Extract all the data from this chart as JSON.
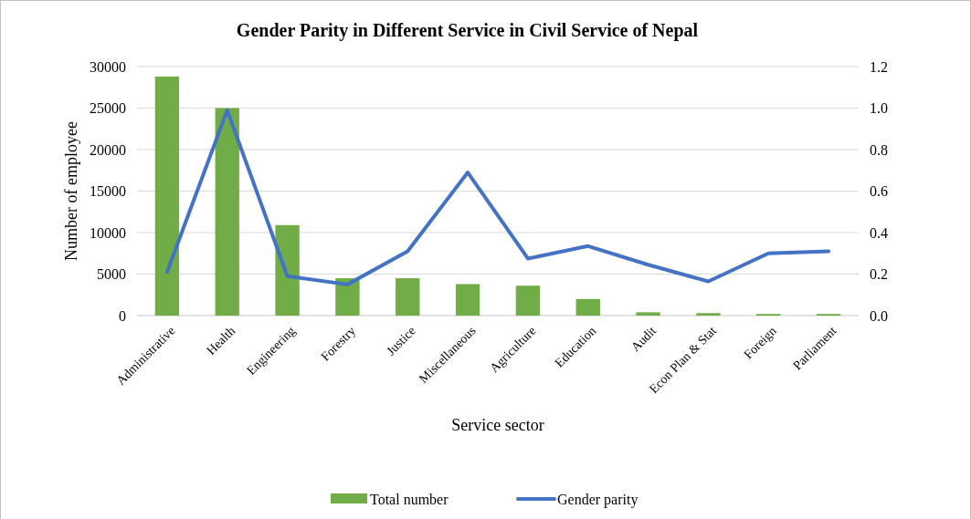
{
  "chart_data": {
    "type": "bar",
    "title": "Gender Parity in Different Service in Civil Service of Nepal",
    "xlabel": "Service sector",
    "ylabel": "Number of employee",
    "categories": [
      "Administrative",
      "Health",
      "Engineering",
      "Forestry",
      "Justice",
      "Miscellaneous",
      "Agriculture",
      "Education",
      "Audit",
      "Econ Plan & Stat",
      "Foreign",
      "Parliament"
    ],
    "series": [
      {
        "name": "Total number",
        "color": "#70ad47",
        "values": [
          28800,
          25000,
          10900,
          4500,
          4500,
          3800,
          3600,
          2000,
          400,
          300,
          200,
          200
        ]
      },
      {
        "name": "Gender parity",
        "type": "line",
        "axis": "y2",
        "color": "#4472c4",
        "values": [
          0.21,
          0.99,
          0.19,
          0.15,
          0.31,
          0.69,
          0.275,
          0.335,
          0.245,
          0.165,
          0.3,
          0.31
        ]
      }
    ],
    "ylim": [
      0,
      30000
    ],
    "yticks": [
      0,
      5000,
      10000,
      15000,
      20000,
      25000,
      30000
    ],
    "y2lim": [
      0,
      1.2
    ],
    "y2ticks": [
      {
        "value": 0,
        "label": "0.0"
      },
      {
        "value": 0.2,
        "label": "0.2"
      },
      {
        "value": 0.4,
        "label": "0.4"
      },
      {
        "value": 0.6,
        "label": "0.6"
      },
      {
        "value": 0.8,
        "label": "0.8"
      },
      {
        "value": 1,
        "label": "1.0"
      },
      {
        "value": 1.2,
        "label": "1.2"
      }
    ],
    "grid": "y",
    "legend": "bottom",
    "marker": "none",
    "line_style": "solid"
  }
}
